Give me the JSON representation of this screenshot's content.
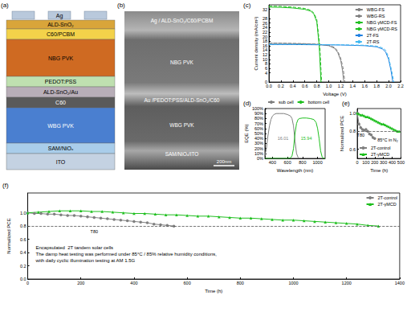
{
  "diagram": {
    "panel": "(a)",
    "electrode": {
      "label": "Ag",
      "color": "#b9c9dc"
    },
    "layers": [
      {
        "label": "ALD-SnO₂",
        "color": "#d9a53a"
      },
      {
        "label": "C60/PCBM",
        "color": "#f3d24a"
      },
      {
        "label": "NBG PVK",
        "color": "#cf6a22"
      },
      {
        "label": "PEDOT:PSS",
        "color": "#bfe0b0"
      },
      {
        "label": "ALD-SnO₂/Au",
        "color": "#b8aeb8"
      },
      {
        "label": "C60",
        "color": "#5a5a5a"
      },
      {
        "label": "WBG PVK",
        "color": "#4a7fd0"
      },
      {
        "label": "SAM/NiOₓ",
        "color": "#a9cdea"
      },
      {
        "label": "ITO",
        "color": "#c4d2e2"
      }
    ]
  },
  "image": {
    "panel": "(b)",
    "labels": [
      "Ag / ALD-SnO₂/C60/PCBM",
      "NBG PVK",
      "Au /PEDOT:PSS/ALD-SnO₂/C60",
      "WBG PVK",
      "SAM/NiOₓ/ITO"
    ],
    "scale_bar": "200nm"
  },
  "chart_data": [
    {
      "panel": "(c)",
      "type": "line",
      "x_label": "Voltage (V)",
      "y_label": "Current density (mA/cm²)",
      "xlim": [
        0,
        2.2
      ],
      "xticks": [
        {
          "value": 0,
          "label": "0.0"
        },
        0.2,
        0.4,
        0.6,
        0.8,
        {
          "value": 1,
          "label": "1.0"
        },
        1.2,
        1.4,
        1.6,
        1.8,
        {
          "value": 2,
          "label": "2.0"
        },
        2.2
      ],
      "ylim": [
        0,
        34
      ],
      "yticks": [
        0,
        2,
        4,
        6,
        8,
        10,
        12,
        14,
        16,
        18,
        20,
        22,
        24,
        26,
        28,
        30,
        32
      ],
      "grid": false,
      "legend": "upper right",
      "series": [
        {
          "name": "WBG-FS",
          "color": "#7f7f7f",
          "line_style": "solid",
          "marker": "none",
          "x": [
            0,
            0.2,
            0.4,
            0.6,
            0.8,
            1.0,
            1.1,
            1.15,
            1.2,
            1.23,
            1.25
          ],
          "values": [
            17.0,
            17.0,
            16.9,
            16.8,
            16.6,
            16.0,
            14.8,
            13.0,
            9.5,
            5.0,
            0
          ]
        },
        {
          "name": "WBG-RS",
          "color": "#7f7f7f",
          "line_style": "dashed",
          "marker": "none",
          "x": [
            0,
            0.2,
            0.4,
            0.6,
            0.8,
            1.0,
            1.1,
            1.15,
            1.2,
            1.24,
            1.27
          ],
          "values": [
            17.1,
            17.1,
            17.0,
            16.9,
            16.7,
            16.2,
            15.2,
            13.6,
            10.5,
            6.0,
            0
          ]
        },
        {
          "name": "NBG γMCD-FS",
          "color": "#1fbf1f",
          "line_style": "solid",
          "marker": "none",
          "x": [
            0,
            0.2,
            0.4,
            0.6,
            0.7,
            0.75,
            0.8,
            0.84,
            0.87
          ],
          "values": [
            33.0,
            32.9,
            32.6,
            32.0,
            31.2,
            30.0,
            26.5,
            16.0,
            0
          ]
        },
        {
          "name": "NBG γMCD-RS",
          "color": "#1fbf1f",
          "line_style": "dashed",
          "marker": "none",
          "x": [
            0,
            0.2,
            0.4,
            0.6,
            0.7,
            0.75,
            0.8,
            0.85,
            0.88
          ],
          "values": [
            33.4,
            33.3,
            33.0,
            32.4,
            31.6,
            30.4,
            27.5,
            16.0,
            0
          ]
        },
        {
          "name": "2T-FS",
          "color": "#1e7fe0",
          "line_style": "solid",
          "marker": "none",
          "x": [
            0,
            0.4,
            0.8,
            1.2,
            1.6,
            1.8,
            1.9,
            1.95,
            2.0,
            2.04,
            2.07
          ],
          "values": [
            16.5,
            16.5,
            16.4,
            16.3,
            16.0,
            15.5,
            14.5,
            13.2,
            10.0,
            5.0,
            0
          ]
        },
        {
          "name": "2T-RS",
          "color": "#3fb8f0",
          "line_style": "dashed",
          "marker": "none",
          "x": [
            0,
            0.4,
            0.8,
            1.2,
            1.6,
            1.8,
            1.9,
            1.95,
            2.0,
            2.05,
            2.09
          ],
          "values": [
            16.6,
            16.6,
            16.5,
            16.4,
            16.2,
            15.8,
            15.0,
            14.0,
            11.0,
            5.0,
            0
          ]
        }
      ]
    },
    {
      "panel": "(d)",
      "type": "line",
      "x_label": "Wavelength (nm)",
      "y_label": "EQE (%)",
      "xlim": [
        300,
        1100
      ],
      "xticks": [
        400,
        600,
        800,
        1000
      ],
      "ylim": [
        0,
        100
      ],
      "yticks": [
        {
          "value": 0,
          "label": "0%"
        },
        {
          "value": 10,
          "label": "10%"
        },
        {
          "value": 20,
          "label": "20%"
        },
        {
          "value": 30,
          "label": "30%"
        },
        {
          "value": 40,
          "label": "40%"
        },
        {
          "value": 50,
          "label": "50%"
        },
        {
          "value": 60,
          "label": "60%"
        },
        {
          "value": 70,
          "label": "70%"
        },
        {
          "value": 80,
          "label": "80%"
        },
        {
          "value": 90,
          "label": "90%"
        },
        {
          "value": 100,
          "label": "100%"
        }
      ],
      "grid": false,
      "legend": "top",
      "annotations": [
        {
          "text": "16.01",
          "x": 540,
          "y": 40,
          "color": "#7f7f7f"
        },
        {
          "text": "15.94",
          "x": 850,
          "y": 40,
          "color": "#1fbf1f"
        }
      ],
      "series": [
        {
          "name": "sub cell",
          "color": "#7f7f7f",
          "line_style": "solid",
          "marker": "none",
          "x": [
            300,
            320,
            340,
            360,
            380,
            400,
            420,
            450,
            500,
            550,
            600,
            640,
            660,
            680,
            700,
            720,
            740,
            760
          ],
          "values": [
            5,
            20,
            45,
            65,
            78,
            85,
            88,
            90,
            90,
            90,
            88,
            85,
            80,
            65,
            35,
            10,
            2,
            0
          ]
        },
        {
          "name": "bottom cell",
          "color": "#1fbf1f",
          "line_style": "solid",
          "marker": "none",
          "x": [
            300,
            600,
            640,
            660,
            680,
            700,
            720,
            740,
            760,
            800,
            850,
            900,
            950,
            980,
            1000,
            1020,
            1040,
            1060,
            1080,
            1100
          ],
          "values": [
            0,
            0,
            1,
            5,
            20,
            50,
            70,
            78,
            80,
            81,
            81,
            80,
            78,
            72,
            60,
            40,
            15,
            3,
            0,
            0
          ]
        }
      ]
    },
    {
      "panel": "(e)",
      "type": "line",
      "x_label": "Time (h)",
      "y_label": "Normalized PCE",
      "xlim": [
        0,
        500
      ],
      "xticks": [
        0,
        100,
        200,
        300,
        400,
        500
      ],
      "ylim": [
        0.5,
        1.05
      ],
      "yticks": [
        0.6,
        0.8,
        {
          "value": 1,
          "label": "1.0"
        }
      ],
      "grid": false,
      "legend": "lower left",
      "t80": 0.8,
      "annotations": [
        {
          "text": "T80",
          "x": 40,
          "y": 0.76,
          "color": "#000000"
        },
        {
          "text": "85°C in N₂",
          "x": 350,
          "y": 0.7,
          "color": "#000000"
        }
      ],
      "series": [
        {
          "name": "2T-control",
          "color": "#7f7f7f",
          "line_style": "solid",
          "marker": "circle",
          "x": [
            0,
            20,
            40,
            60,
            80,
            100,
            120,
            140,
            160,
            180,
            200
          ],
          "values": [
            1.0,
            0.88,
            0.84,
            0.82,
            0.81,
            0.82,
            0.8,
            0.77,
            0.76,
            0.73,
            0.72
          ]
        },
        {
          "name": "2T-γMCD",
          "color": "#1fbf1f",
          "line_style": "solid",
          "marker": "triangle",
          "x": [
            0,
            20,
            40,
            60,
            80,
            100,
            120,
            140,
            160,
            180,
            200,
            220,
            240,
            260,
            280,
            300,
            320,
            340,
            360,
            380,
            400,
            420,
            440,
            460,
            480
          ],
          "values": [
            1.0,
            0.99,
            0.98,
            0.98,
            0.97,
            0.96,
            0.96,
            0.95,
            0.94,
            0.93,
            0.92,
            0.91,
            0.9,
            0.89,
            0.88,
            0.88,
            0.87,
            0.86,
            0.85,
            0.84,
            0.83,
            0.82,
            0.81,
            0.8,
            0.8
          ]
        }
      ]
    },
    {
      "panel": "(f)",
      "type": "line",
      "x_label": "Time (h)",
      "y_label": "Normalized PCE",
      "xlim": [
        0,
        1400
      ],
      "xticks": [
        0,
        200,
        400,
        600,
        800,
        1000,
        1200,
        1400
      ],
      "ylim": [
        0,
        1.3
      ],
      "yticks": [
        {
          "value": 0,
          "label": "0.0"
        },
        0.2,
        0.4,
        0.6,
        0.8,
        {
          "value": 1,
          "label": "1.0"
        }
      ],
      "grid": false,
      "legend": "upper right",
      "t80": 0.8,
      "annotations": [
        {
          "text": "T80",
          "x": 250,
          "y": 0.72,
          "color": "#000000"
        },
        {
          "lines": [
            "Encapsulated  2T tandem solar cells",
            "The damp heat testing was performed under 85°C / 85% relative humidity conditions,",
            "with daily cyclic illumination testing at AM 1.5G"
          ],
          "x": 30,
          "y": 0.38,
          "color": "#000000"
        }
      ],
      "series": [
        {
          "name": "2T-control",
          "color": "#7f7f7f",
          "line_style": "solid",
          "marker": "circle",
          "x": [
            0,
            25,
            50,
            75,
            100,
            125,
            150,
            175,
            200,
            225,
            250,
            275,
            300,
            325,
            350,
            375,
            400,
            425,
            450,
            475,
            500,
            525,
            550
          ],
          "values": [
            1.0,
            0.99,
            0.99,
            0.98,
            0.98,
            0.97,
            0.96,
            0.96,
            0.95,
            0.94,
            0.93,
            0.92,
            0.91,
            0.9,
            0.89,
            0.88,
            0.87,
            0.86,
            0.85,
            0.83,
            0.82,
            0.81,
            0.8
          ]
        },
        {
          "name": "2T-γMCD",
          "color": "#1fbf1f",
          "line_style": "solid",
          "marker": "triangle",
          "x": [
            0,
            40,
            80,
            120,
            160,
            200,
            240,
            280,
            320,
            360,
            400,
            440,
            480,
            520,
            560,
            600,
            640,
            680,
            720,
            760,
            800,
            840,
            880,
            920,
            960,
            1000,
            1040,
            1080,
            1120,
            1160,
            1200,
            1240,
            1280,
            1320
          ],
          "values": [
            1.0,
            1.01,
            1.02,
            1.03,
            1.03,
            1.03,
            1.02,
            1.02,
            1.01,
            1.0,
            0.99,
            0.99,
            0.98,
            0.97,
            0.97,
            0.96,
            0.95,
            0.95,
            0.94,
            0.93,
            0.92,
            0.92,
            0.91,
            0.9,
            0.89,
            0.89,
            0.88,
            0.87,
            0.86,
            0.85,
            0.84,
            0.83,
            0.81,
            0.8
          ]
        }
      ]
    }
  ]
}
